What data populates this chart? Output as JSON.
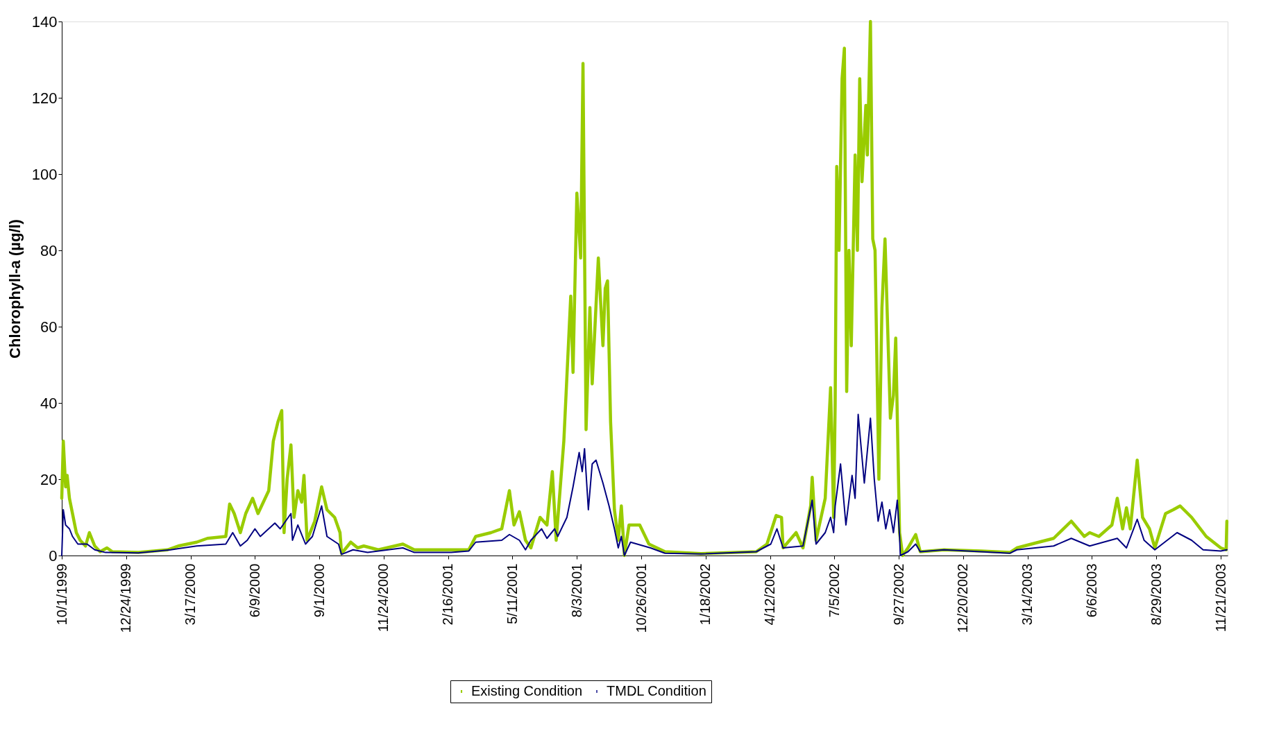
{
  "chart_data": {
    "type": "line",
    "ylabel": "Chlorophyll-a (µg/l)",
    "xlim": [
      "1999-10-01",
      "2003-11-30"
    ],
    "ylim": [
      0,
      140
    ],
    "yticks": [
      0,
      20,
      40,
      60,
      80,
      100,
      120,
      140
    ],
    "xticks": [
      {
        "value": "1999-10-01",
        "label": "10/1/1999"
      },
      {
        "value": "1999-12-24",
        "label": "12/24/1999"
      },
      {
        "value": "2000-03-17",
        "label": "3/17/2000"
      },
      {
        "value": "2000-06-09",
        "label": "6/9/2000"
      },
      {
        "value": "2000-09-01",
        "label": "9/1/2000"
      },
      {
        "value": "2000-11-24",
        "label": "11/24/2000"
      },
      {
        "value": "2001-02-16",
        "label": "2/16/2001"
      },
      {
        "value": "2001-05-11",
        "label": "5/11/2001"
      },
      {
        "value": "2001-08-03",
        "label": "8/3/2001"
      },
      {
        "value": "2001-10-26",
        "label": "10/26/2001"
      },
      {
        "value": "2002-01-18",
        "label": "1/18/2002"
      },
      {
        "value": "2002-04-12",
        "label": "4/12/2002"
      },
      {
        "value": "2002-07-05",
        "label": "7/5/2002"
      },
      {
        "value": "2002-09-27",
        "label": "9/27/2002"
      },
      {
        "value": "2002-12-20",
        "label": "12/20/2002"
      },
      {
        "value": "2003-03-14",
        "label": "3/14/2003"
      },
      {
        "value": "2003-06-06",
        "label": "6/6/2003"
      },
      {
        "value": "2003-08-29",
        "label": "8/29/2003"
      },
      {
        "value": "2003-11-21",
        "label": "11/21/2003"
      }
    ],
    "grid": false,
    "legend": "bottom",
    "marker": "none",
    "line_style": "solid",
    "series": [
      {
        "name": "Existing Condition",
        "color": "#99cc00",
        "x": [
          "1999-10-01",
          "1999-10-03",
          "1999-10-06",
          "1999-10-08",
          "1999-10-11",
          "1999-10-15",
          "1999-10-20",
          "1999-10-25",
          "1999-11-01",
          "1999-11-06",
          "1999-11-13",
          "1999-11-20",
          "1999-11-29",
          "1999-12-06",
          "2000-01-09",
          "2000-02-16",
          "2000-03-01",
          "2000-03-25",
          "2000-04-08",
          "2000-05-02",
          "2000-05-07",
          "2000-05-13",
          "2000-05-21",
          "2000-05-28",
          "2000-06-06",
          "2000-06-13",
          "2000-06-27",
          "2000-07-03",
          "2000-07-09",
          "2000-07-14",
          "2000-07-17",
          "2000-07-21",
          "2000-07-26",
          "2000-07-30",
          "2000-08-04",
          "2000-08-09",
          "2000-08-12",
          "2000-08-16",
          "2000-08-26",
          "2000-09-04",
          "2000-09-11",
          "2000-09-21",
          "2000-09-28",
          "2000-09-30",
          "2000-10-12",
          "2000-10-21",
          "2000-10-29",
          "2000-11-17",
          "2000-12-19",
          "2001-01-03",
          "2001-02-20",
          "2001-03-15",
          "2001-03-24",
          "2001-04-13",
          "2001-04-27",
          "2001-05-07",
          "2001-05-13",
          "2001-05-20",
          "2001-05-28",
          "2001-06-04",
          "2001-06-16",
          "2001-06-25",
          "2001-07-02",
          "2001-07-07",
          "2001-07-17",
          "2001-07-26",
          "2001-07-29",
          "2001-08-03",
          "2001-08-08",
          "2001-08-11",
          "2001-08-15",
          "2001-08-20",
          "2001-08-23",
          "2001-08-31",
          "2001-09-06",
          "2001-09-09",
          "2001-09-12",
          "2001-09-16",
          "2001-09-21",
          "2001-09-26",
          "2001-09-30",
          "2001-10-04",
          "2001-10-10",
          "2001-10-24",
          "2001-11-05",
          "2001-11-26",
          "2002-01-12",
          "2002-03-25",
          "2002-04-08",
          "2002-04-20",
          "2002-04-27",
          "2002-04-29",
          "2002-05-16",
          "2002-05-25",
          "2002-06-04",
          "2002-06-06",
          "2002-06-11",
          "2002-06-23",
          "2002-06-30",
          "2002-07-04",
          "2002-07-06",
          "2002-07-08",
          "2002-07-11",
          "2002-07-15",
          "2002-07-18",
          "2002-07-21",
          "2002-07-24",
          "2002-07-27",
          "2002-08-01",
          "2002-08-04",
          "2002-08-07",
          "2002-08-10",
          "2002-08-15",
          "2002-08-17",
          "2002-08-21",
          "2002-08-24",
          "2002-08-27",
          "2002-09-01",
          "2002-09-05",
          "2002-09-09",
          "2002-09-16",
          "2002-09-20",
          "2002-09-23",
          "2002-09-28",
          "2002-10-02",
          "2002-10-09",
          "2002-10-19",
          "2002-10-25",
          "2002-11-25",
          "2003-01-12",
          "2003-02-19",
          "2003-02-28",
          "2003-03-19",
          "2003-04-17",
          "2003-05-10",
          "2003-05-27",
          "2003-06-03",
          "2003-06-15",
          "2003-07-02",
          "2003-07-09",
          "2003-07-16",
          "2003-07-21",
          "2003-07-26",
          "2003-08-04",
          "2003-08-11",
          "2003-08-20",
          "2003-08-27",
          "2003-09-10",
          "2003-09-20",
          "2003-09-29",
          "2003-10-14",
          "2003-11-02",
          "2003-11-21",
          "2003-11-28",
          "2003-11-29"
        ],
        "values": [
          15,
          30,
          18,
          21,
          15,
          11,
          6,
          4,
          2.5,
          6,
          2.5,
          1,
          2,
          1,
          0.8,
          1.5,
          2.5,
          3.5,
          4.5,
          5,
          13.5,
          11,
          6,
          11,
          15,
          11,
          17,
          30,
          35,
          38,
          6,
          20,
          29,
          10,
          17,
          14,
          21,
          4,
          9,
          18,
          12,
          10,
          6,
          0.5,
          3.5,
          2,
          2.5,
          1.5,
          3,
          1.5,
          1.5,
          1.5,
          5,
          6,
          7,
          17,
          8,
          11.5,
          4,
          2,
          10,
          8,
          22,
          4,
          30,
          68,
          48,
          95,
          78,
          129,
          33,
          65,
          45,
          78,
          55,
          70,
          72,
          35,
          12,
          4,
          13,
          0,
          8,
          8,
          3,
          1,
          0.5,
          1,
          3,
          10.5,
          10,
          2,
          6,
          2,
          13,
          20.5,
          4,
          15,
          44,
          10,
          40,
          102,
          80,
          125,
          133,
          43,
          80,
          55,
          105,
          80,
          125,
          98,
          118,
          105,
          140,
          83,
          80,
          20,
          65,
          83,
          36,
          42,
          57,
          6,
          0,
          2,
          5.5,
          1,
          1.5,
          1.2,
          0.8,
          2,
          3,
          4.5,
          9,
          5,
          6,
          5,
          8,
          15,
          7,
          12.5,
          7,
          25,
          10,
          7,
          2,
          11,
          12,
          13,
          10,
          5,
          2,
          1.5,
          9
        ]
      },
      {
        "name": "TMDL Condition",
        "color": "#000080",
        "x": [
          "1999-10-01",
          "1999-10-03",
          "1999-10-06",
          "1999-10-11",
          "1999-10-15",
          "1999-10-22",
          "1999-11-03",
          "1999-11-13",
          "1999-11-27",
          "2000-01-09",
          "2000-02-20",
          "2000-03-25",
          "2000-05-02",
          "2000-05-11",
          "2000-05-21",
          "2000-05-30",
          "2000-06-09",
          "2000-06-16",
          "2000-07-05",
          "2000-07-12",
          "2000-07-26",
          "2000-07-28",
          "2000-08-04",
          "2000-08-14",
          "2000-08-23",
          "2000-09-04",
          "2000-09-11",
          "2000-09-26",
          "2000-09-30",
          "2000-10-15",
          "2000-11-03",
          "2000-12-19",
          "2001-01-03",
          "2001-02-20",
          "2001-03-15",
          "2001-03-24",
          "2001-04-27",
          "2001-05-07",
          "2001-05-20",
          "2001-05-28",
          "2001-06-04",
          "2001-06-18",
          "2001-06-25",
          "2001-07-05",
          "2001-07-09",
          "2001-07-21",
          "2001-07-29",
          "2001-08-06",
          "2001-08-10",
          "2001-08-13",
          "2001-08-18",
          "2001-08-23",
          "2001-08-28",
          "2001-09-06",
          "2001-09-14",
          "2001-09-21",
          "2001-09-26",
          "2001-09-30",
          "2001-10-04",
          "2001-10-12",
          "2001-11-07",
          "2001-11-26",
          "2002-01-12",
          "2002-03-25",
          "2002-04-13",
          "2002-04-21",
          "2002-04-29",
          "2002-05-25",
          "2002-06-06",
          "2002-06-11",
          "2002-06-23",
          "2002-06-30",
          "2002-07-04",
          "2002-07-06",
          "2002-07-13",
          "2002-07-20",
          "2002-07-28",
          "2002-08-01",
          "2002-08-05",
          "2002-08-13",
          "2002-08-21",
          "2002-08-26",
          "2002-08-31",
          "2002-09-05",
          "2002-09-10",
          "2002-09-15",
          "2002-09-20",
          "2002-09-25",
          "2002-09-28",
          "2002-09-29",
          "2002-10-09",
          "2002-10-19",
          "2002-10-25",
          "2002-11-25",
          "2003-01-12",
          "2003-02-19",
          "2003-02-28",
          "2003-04-17",
          "2003-05-10",
          "2003-06-03",
          "2003-07-09",
          "2003-07-21",
          "2003-08-04",
          "2003-08-13",
          "2003-08-27",
          "2003-09-25",
          "2003-10-14",
          "2003-10-29",
          "2003-11-21",
          "2003-11-29"
        ],
        "values": [
          0,
          12,
          8,
          7,
          5,
          3,
          3,
          1.5,
          0.8,
          0.7,
          1.5,
          2.5,
          3,
          6,
          2.5,
          4,
          7,
          5,
          8.5,
          7,
          11,
          4,
          8,
          3,
          5,
          13,
          5,
          3,
          0.3,
          1.5,
          0.8,
          2,
          0.8,
          0.8,
          1.2,
          3.5,
          4,
          5.5,
          4,
          1.5,
          4,
          7,
          4.5,
          7,
          5,
          10,
          18,
          27,
          22,
          28,
          12,
          24,
          25,
          19,
          13,
          7,
          2,
          5,
          0,
          3.5,
          2,
          0.6,
          0.4,
          1,
          3,
          7,
          2,
          2.5,
          14.5,
          3,
          6,
          10,
          6,
          13,
          24,
          8,
          21,
          15,
          37,
          19,
          36,
          20,
          9,
          14,
          7,
          12,
          6,
          14.5,
          5,
          0,
          1,
          3,
          1,
          1.5,
          1,
          0.6,
          1.5,
          2.5,
          4.5,
          2.5,
          4.5,
          2,
          9.5,
          4,
          1.5,
          6,
          4,
          1.5,
          1.2,
          1.5
        ]
      }
    ]
  }
}
